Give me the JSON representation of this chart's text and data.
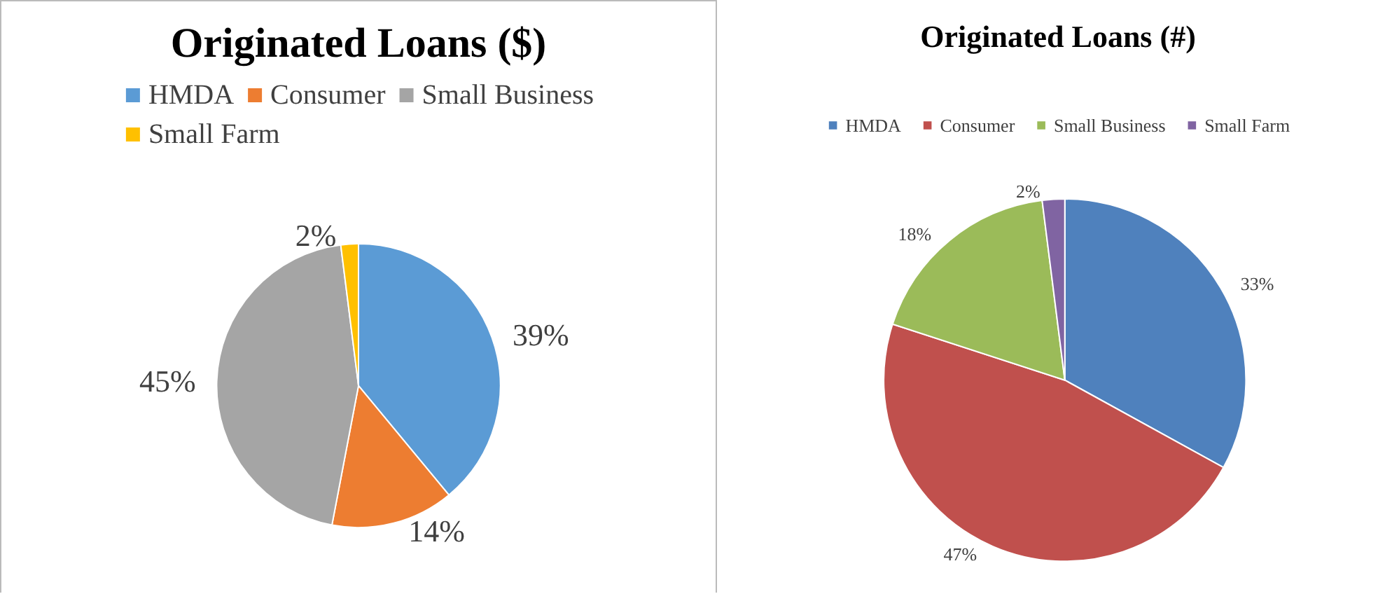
{
  "chart_data": [
    {
      "type": "pie",
      "title": "Originated Loans ($)",
      "categories": [
        "HMDA",
        "Consumer",
        "Small Business",
        "Small Farm"
      ],
      "values": [
        39,
        14,
        45,
        2
      ],
      "colors": [
        "#5b9bd5",
        "#ed7d31",
        "#a5a5a5",
        "#ffc000"
      ],
      "legend": "top",
      "value_labels": [
        "39%",
        "14%",
        "45%",
        "2%"
      ]
    },
    {
      "type": "pie",
      "title": "Originated Loans (#)",
      "categories": [
        "HMDA",
        "Consumer",
        "Small Business",
        "Small Farm"
      ],
      "values": [
        33,
        47,
        18,
        2
      ],
      "colors": [
        "#4f81bd",
        "#c0504d",
        "#9bbb59",
        "#8064a2"
      ],
      "legend": "top",
      "value_labels": [
        "33%",
        "47%",
        "18%",
        "2%"
      ]
    }
  ]
}
